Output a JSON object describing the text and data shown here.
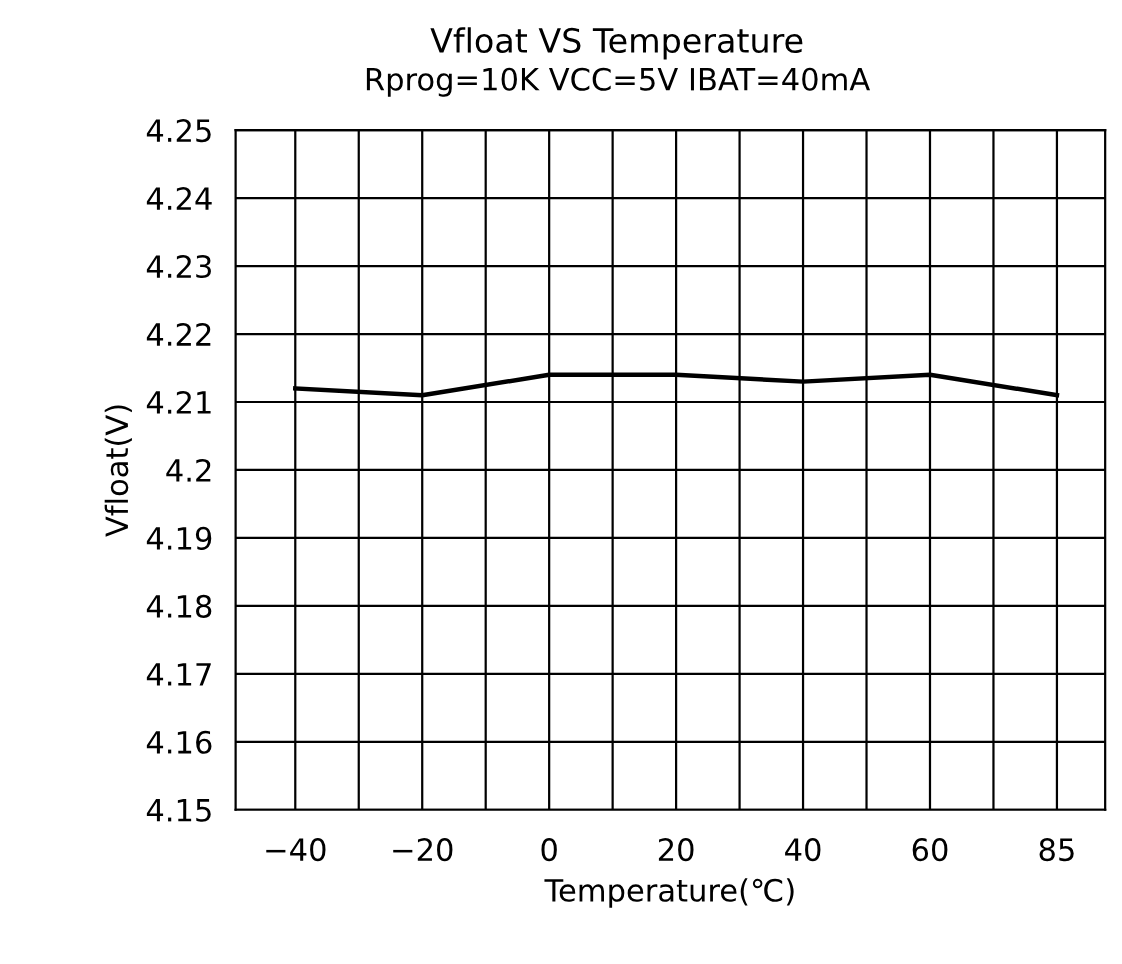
{
  "chart_data": {
    "type": "line",
    "title": "Vfloat VS Temperature",
    "subtitle": "Rprog=10K VCC=5V IBAT=40mA",
    "xlabel": "Temperature(℃)",
    "ylabel": "Vfloat(V)",
    "categories": [
      "−40",
      "−20",
      "0",
      "20",
      "40",
      "60",
      "85"
    ],
    "series": [
      {
        "color": "#000000",
        "values": [
          4.212,
          4.211,
          4.214,
          4.214,
          4.213,
          4.214,
          4.211
        ]
      }
    ],
    "ylim": [
      4.15,
      4.25
    ],
    "yticks": [
      4.15,
      4.16,
      4.17,
      4.18,
      4.19,
      4.2,
      4.21,
      4.22,
      4.23,
      4.24,
      4.25
    ],
    "grid": true,
    "marker": "none",
    "line_style": "solid"
  }
}
